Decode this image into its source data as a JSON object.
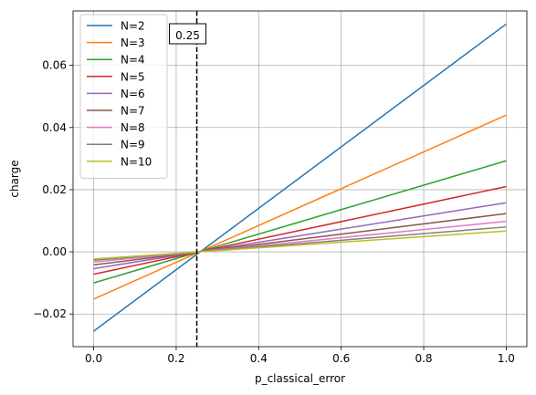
{
  "chart_data": {
    "type": "line",
    "xlabel": "p_classical_error",
    "ylabel": "charge",
    "xlim": [
      -0.05,
      1.05
    ],
    "ylim": [
      -0.0305,
      0.0775
    ],
    "xticks": [
      0.0,
      0.2,
      0.4,
      0.6,
      0.8,
      1.0
    ],
    "xtick_labels": [
      "0.0",
      "0.2",
      "0.4",
      "0.6",
      "0.8",
      "1.0"
    ],
    "yticks": [
      -0.02,
      0.0,
      0.02,
      0.04,
      0.06
    ],
    "ytick_labels": [
      "−0.02",
      "0.00",
      "0.02",
      "0.04",
      "0.06"
    ],
    "grid": true,
    "legend_position": "top-left",
    "vline": {
      "x": 0.25,
      "style": "dashed",
      "color": "#000000",
      "label": "0.25"
    },
    "series": [
      {
        "name": "N=2",
        "color": "#1f77b4",
        "x": [
          0.0,
          1.0
        ],
        "y": [
          -0.0255,
          0.0733
        ]
      },
      {
        "name": "N=3",
        "color": "#ff7f0e",
        "x": [
          0.0,
          1.0
        ],
        "y": [
          -0.0152,
          0.044
        ]
      },
      {
        "name": "N=4",
        "color": "#2ca02c",
        "x": [
          0.0,
          1.0
        ],
        "y": [
          -0.01,
          0.0293
        ]
      },
      {
        "name": "N=5",
        "color": "#d62728",
        "x": [
          0.0,
          1.0
        ],
        "y": [
          -0.0072,
          0.021
        ]
      },
      {
        "name": "N=6",
        "color": "#9467bd",
        "x": [
          0.0,
          1.0
        ],
        "y": [
          -0.0054,
          0.0158
        ]
      },
      {
        "name": "N=7",
        "color": "#8c564b",
        "x": [
          0.0,
          1.0
        ],
        "y": [
          -0.0042,
          0.0123
        ]
      },
      {
        "name": "N=8",
        "color": "#e377c2",
        "x": [
          0.0,
          1.0
        ],
        "y": [
          -0.0033,
          0.0098
        ]
      },
      {
        "name": "N=9",
        "color": "#7f7f7f",
        "x": [
          0.0,
          1.0
        ],
        "y": [
          -0.0027,
          0.008
        ]
      },
      {
        "name": "N=10",
        "color": "#bcbd22",
        "x": [
          0.0,
          1.0
        ],
        "y": [
          -0.0023,
          0.0067
        ]
      }
    ]
  }
}
